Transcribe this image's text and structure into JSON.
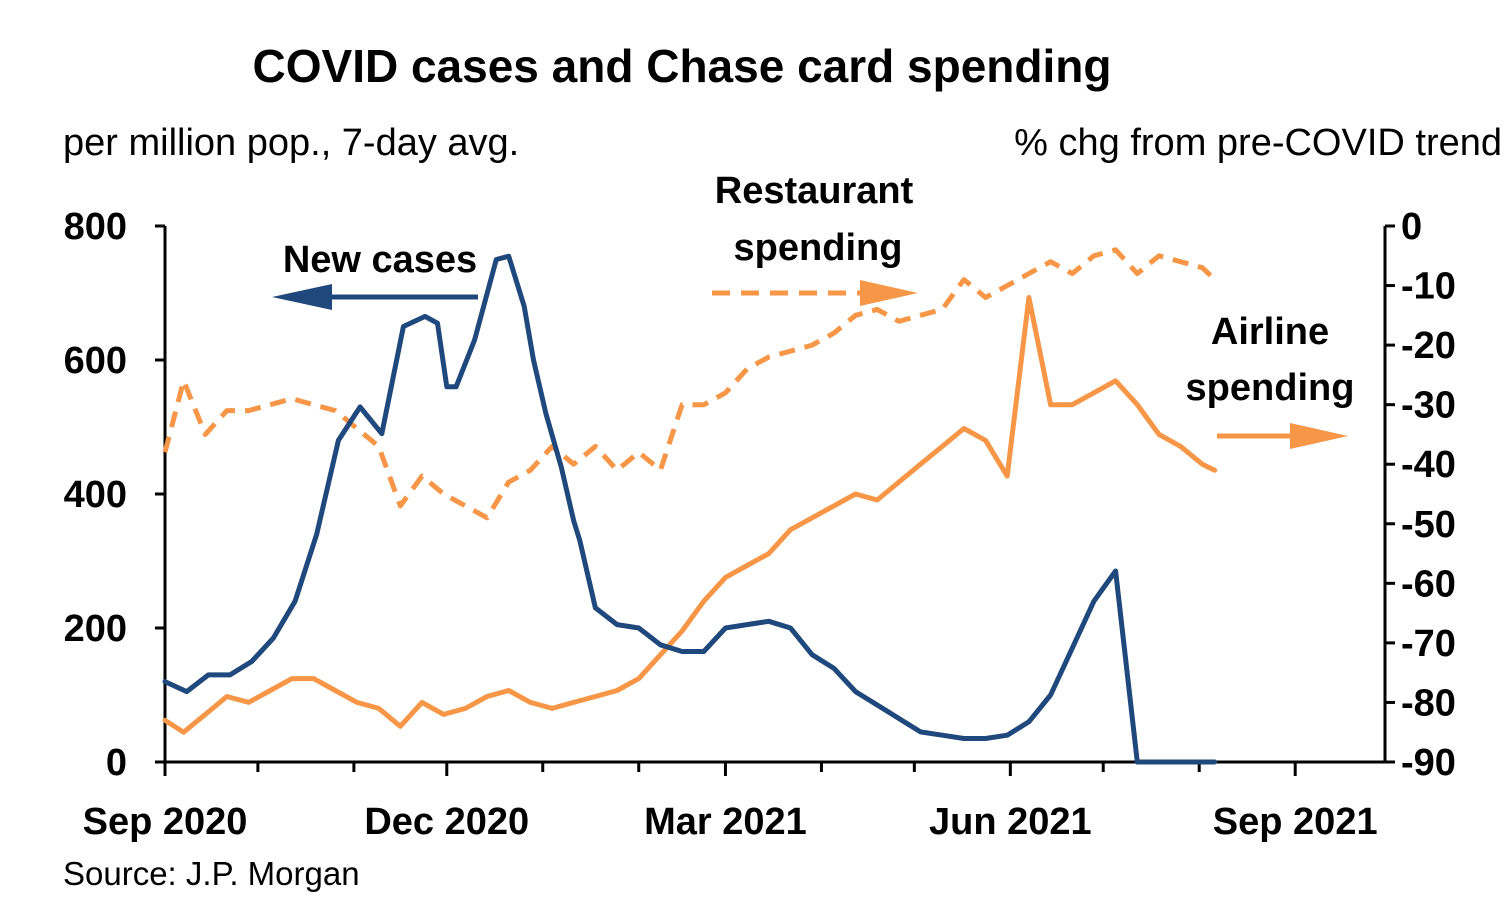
{
  "chart_data": {
    "type": "line",
    "title": "COVID cases and Chase card spending",
    "left_axis_label": "per million pop., 7-day avg.",
    "right_axis_label": "% chg from pre-COVID trend",
    "source": "Source: J.P. Morgan",
    "x_range": [
      "2020-09-01",
      "2021-09-30"
    ],
    "x_ticks": [
      "Sep 2020",
      "Dec 2020",
      "Mar 2021",
      "Jun 2021",
      "Sep 2021"
    ],
    "x_tick_dates": [
      "2020-09-01",
      "2020-12-01",
      "2021-03-01",
      "2021-06-01",
      "2021-09-01"
    ],
    "ylim_left": [
      0,
      800
    ],
    "yticks_left": [
      "0",
      "200",
      "400",
      "600",
      "800"
    ],
    "ylim_right": [
      -90,
      0
    ],
    "yticks_right": [
      "0",
      "-10",
      "-20",
      "-30",
      "-40",
      "-50",
      "-60",
      "-70",
      "-80",
      "-90"
    ],
    "grid": false,
    "annotations": {
      "cases": "New cases",
      "restaurant_line1": "Restaurant",
      "restaurant_line2": "spending",
      "airline_line1": "Airline",
      "airline_line2": "spending"
    },
    "series": [
      {
        "name": "New cases",
        "axis": "left",
        "color": "#1f497d",
        "style": "solid",
        "x": [
          "2020-09-01",
          "2020-09-08",
          "2020-09-15",
          "2020-09-22",
          "2020-09-29",
          "2020-10-06",
          "2020-10-13",
          "2020-10-20",
          "2020-10-27",
          "2020-11-03",
          "2020-11-10",
          "2020-11-17",
          "2020-11-24",
          "2020-11-28",
          "2020-12-01",
          "2020-12-04",
          "2020-12-10",
          "2020-12-17",
          "2020-12-21",
          "2020-12-26",
          "2020-12-29",
          "2021-01-02",
          "2021-01-07",
          "2021-01-11",
          "2021-01-13",
          "2021-01-18",
          "2021-01-25",
          "2021-02-01",
          "2021-02-08",
          "2021-02-15",
          "2021-02-22",
          "2021-03-01",
          "2021-03-08",
          "2021-03-15",
          "2021-03-22",
          "2021-03-29",
          "2021-04-05",
          "2021-04-12",
          "2021-04-19",
          "2021-04-26",
          "2021-05-03",
          "2021-05-10",
          "2021-05-17",
          "2021-05-24",
          "2021-05-31",
          "2021-06-07",
          "2021-06-14",
          "2021-06-21",
          "2021-06-28",
          "2021-07-05",
          "2021-07-12",
          "2021-07-19",
          "2021-07-26",
          "2021-08-02",
          "2021-08-06"
        ],
        "values": [
          120,
          105,
          130,
          130,
          150,
          185,
          240,
          340,
          480,
          530,
          490,
          650,
          665,
          655,
          560,
          560,
          630,
          750,
          755,
          680,
          600,
          520,
          440,
          360,
          330,
          230,
          205,
          200,
          175,
          165,
          165,
          200,
          205,
          210,
          200,
          160,
          140,
          105,
          85,
          65,
          45,
          40,
          35,
          35,
          40,
          60,
          100,
          170,
          240,
          285,
          0,
          0,
          0,
          0,
          0
        ]
      },
      {
        "name": "Restaurant spending",
        "axis": "right",
        "color": "#f79646",
        "style": "dashed",
        "x": [
          "2020-09-01",
          "2020-09-07",
          "2020-09-14",
          "2020-09-21",
          "2020-09-28",
          "2020-10-05",
          "2020-10-12",
          "2020-10-19",
          "2020-10-26",
          "2020-11-02",
          "2020-11-09",
          "2020-11-16",
          "2020-11-23",
          "2020-11-30",
          "2020-12-07",
          "2020-12-14",
          "2020-12-21",
          "2020-12-28",
          "2021-01-04",
          "2021-01-11",
          "2021-01-18",
          "2021-01-25",
          "2021-02-01",
          "2021-02-08",
          "2021-02-15",
          "2021-02-22",
          "2021-03-01",
          "2021-03-08",
          "2021-03-15",
          "2021-03-22",
          "2021-03-29",
          "2021-04-05",
          "2021-04-12",
          "2021-04-19",
          "2021-04-26",
          "2021-05-03",
          "2021-05-10",
          "2021-05-17",
          "2021-05-24",
          "2021-05-31",
          "2021-06-07",
          "2021-06-14",
          "2021-06-21",
          "2021-06-28",
          "2021-07-05",
          "2021-07-12",
          "2021-07-19",
          "2021-07-26",
          "2021-08-02",
          "2021-08-06"
        ],
        "values": [
          -38,
          -26,
          -35,
          -31,
          -31,
          -30,
          -29,
          -30,
          -31,
          -34,
          -37,
          -47,
          -42,
          -45,
          -47,
          -49,
          -43,
          -41,
          -37,
          -40,
          -37,
          -41,
          -38,
          -41,
          -30,
          -30,
          -28,
          -24,
          -22,
          -21,
          -20,
          -18,
          -15,
          -14,
          -16,
          -15,
          -14,
          -9,
          -12,
          -10,
          -8,
          -6,
          -8,
          -5,
          -4,
          -8,
          -5,
          -6,
          -7,
          -9
        ]
      },
      {
        "name": "Airline spending",
        "axis": "right",
        "color": "#f79646",
        "style": "solid",
        "x": [
          "2020-09-01",
          "2020-09-07",
          "2020-09-14",
          "2020-09-21",
          "2020-09-28",
          "2020-10-05",
          "2020-10-12",
          "2020-10-19",
          "2020-10-26",
          "2020-11-02",
          "2020-11-09",
          "2020-11-16",
          "2020-11-23",
          "2020-11-30",
          "2020-12-07",
          "2020-12-14",
          "2020-12-21",
          "2020-12-28",
          "2021-01-04",
          "2021-01-11",
          "2021-01-18",
          "2021-01-25",
          "2021-02-01",
          "2021-02-08",
          "2021-02-15",
          "2021-02-22",
          "2021-03-01",
          "2021-03-08",
          "2021-03-15",
          "2021-03-22",
          "2021-03-29",
          "2021-04-05",
          "2021-04-12",
          "2021-04-19",
          "2021-04-26",
          "2021-05-03",
          "2021-05-10",
          "2021-05-17",
          "2021-05-24",
          "2021-05-31",
          "2021-06-07",
          "2021-06-14",
          "2021-06-21",
          "2021-06-28",
          "2021-07-05",
          "2021-07-12",
          "2021-07-19",
          "2021-07-26",
          "2021-08-02",
          "2021-08-06"
        ],
        "values": [
          -83,
          -85,
          -82,
          -79,
          -80,
          -78,
          -76,
          -76,
          -78,
          -80,
          -81,
          -84,
          -80,
          -82,
          -81,
          -79,
          -78,
          -80,
          -81,
          -80,
          -79,
          -78,
          -76,
          -72,
          -68,
          -63,
          -59,
          -57,
          -55,
          -51,
          -49,
          -47,
          -45,
          -46,
          -43,
          -40,
          -37,
          -34,
          -36,
          -42,
          -12,
          -30,
          -30,
          -28,
          -26,
          -30,
          -35,
          -37,
          -40,
          -41
        ]
      }
    ]
  }
}
